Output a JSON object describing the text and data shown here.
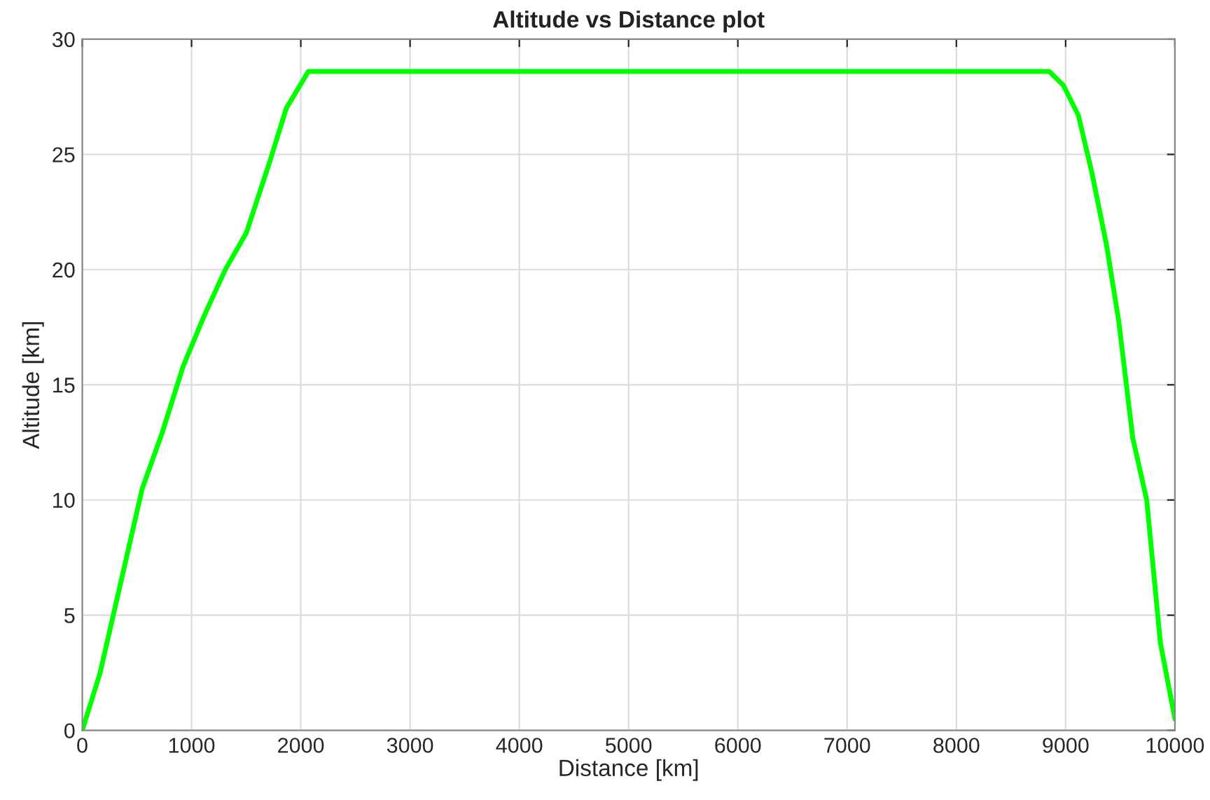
{
  "chart_data": {
    "type": "line",
    "title": "Altitude vs Distance plot",
    "xlabel": "Distance [km]",
    "ylabel": "Altitude [km]",
    "series": [
      {
        "color": "#00ff00",
        "x": [
          0,
          163,
          549,
          730,
          923,
          1116,
          1309,
          1502,
          1717,
          1867,
          2069,
          8850,
          8979,
          9116,
          9236,
          9373,
          9485,
          9614,
          9742,
          9867,
          10000
        ],
        "values": [
          0,
          2.5,
          10.5,
          12.9,
          15.8,
          18.0,
          20.0,
          21.6,
          24.7,
          27.0,
          28.6,
          28.6,
          28.0,
          26.7,
          24.3,
          21.1,
          17.8,
          12.7,
          10.0,
          3.8,
          0.5
        ]
      }
    ],
    "xlim": [
      0,
      10000
    ],
    "ylim": [
      0,
      30
    ],
    "xticks": [
      0,
      1000,
      2000,
      3000,
      4000,
      5000,
      6000,
      7000,
      8000,
      9000,
      10000
    ],
    "yticks": [
      0,
      5,
      10,
      15,
      20,
      25,
      30
    ],
    "grid": true,
    "line_style": "solid",
    "marker": "none"
  }
}
